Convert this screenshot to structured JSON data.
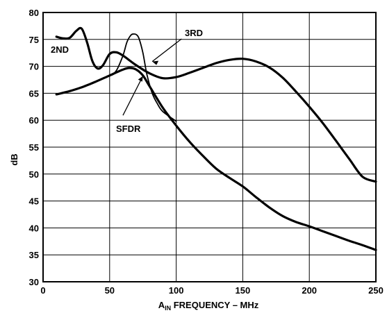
{
  "chart_data": {
    "type": "line",
    "title": "",
    "xlabel_prefix": "A",
    "xlabel_subscript": "IN",
    "xlabel_rest": " FREQUENCY – MHz",
    "ylabel": "dB",
    "xlim": [
      0,
      250
    ],
    "ylim": [
      30,
      80
    ],
    "xticks": [
      0,
      50,
      100,
      150,
      200,
      250
    ],
    "yticks": [
      30,
      35,
      40,
      45,
      50,
      55,
      60,
      65,
      70,
      75,
      80
    ],
    "grid": true,
    "series": [
      {
        "name": "2ND",
        "x": [
          10,
          15,
          20,
          25,
          29,
          33,
          37,
          41,
          45,
          50,
          55,
          60,
          65,
          70,
          80,
          90,
          100,
          110,
          120,
          130,
          140,
          150,
          160,
          170,
          180,
          190,
          200,
          210,
          220,
          230,
          240,
          250
        ],
        "y": [
          75.5,
          75.2,
          75.3,
          76.6,
          77.0,
          74.5,
          71.0,
          69.6,
          70.2,
          72.3,
          72.6,
          72.0,
          71.1,
          70.2,
          68.7,
          67.8,
          68.0,
          68.8,
          69.7,
          70.6,
          71.2,
          71.4,
          70.9,
          69.8,
          67.9,
          65.3,
          62.5,
          59.5,
          56.2,
          52.8,
          49.5,
          48.6
        ]
      },
      {
        "name": "3RD",
        "x": [
          10,
          20,
          30,
          40,
          50,
          55,
          60,
          63,
          66,
          68,
          70,
          72,
          75,
          78,
          82,
          86,
          90,
          100
        ],
        "y": [
          64.8,
          65.4,
          66.2,
          67.2,
          68.3,
          69.2,
          72.0,
          74.5,
          75.8,
          76.0,
          75.9,
          75.2,
          72.5,
          68.5,
          65.0,
          63.0,
          61.6,
          59.8
        ]
      },
      {
        "name": "SFDR",
        "x": [
          10,
          20,
          30,
          40,
          50,
          60,
          65,
          70,
          75,
          80,
          90,
          100,
          110,
          120,
          130,
          140,
          150,
          160,
          170,
          180,
          190,
          200,
          210,
          220,
          230,
          240,
          250
        ],
        "y": [
          64.8,
          65.4,
          66.2,
          67.2,
          68.3,
          69.4,
          69.7,
          69.4,
          68.3,
          66.3,
          62.3,
          59.0,
          56.0,
          53.4,
          51.0,
          49.3,
          47.7,
          45.7,
          43.8,
          42.2,
          41.1,
          40.3,
          39.4,
          38.5,
          37.6,
          36.8,
          35.9
        ]
      }
    ]
  }
}
